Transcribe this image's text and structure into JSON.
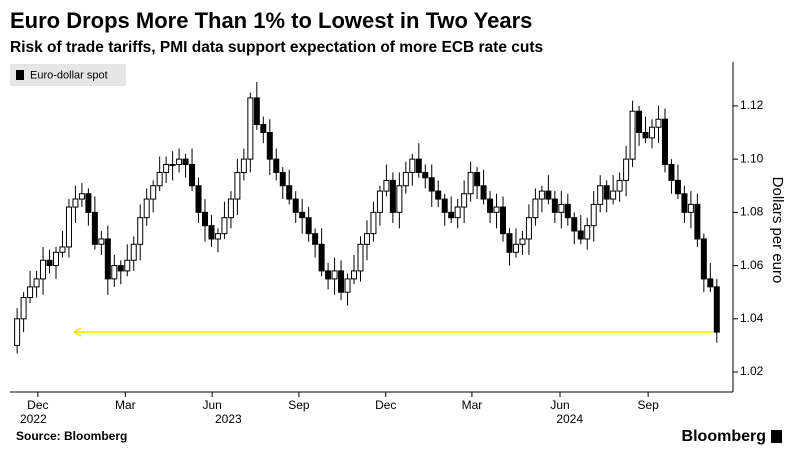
{
  "chart_data": {
    "type": "candlestick",
    "title": "Euro Drops More Than 1% to Lowest in Two Years",
    "subtitle": "Risk of trade tariffs, PMI data support expectation of more ECB rate cuts",
    "y_axis_label": "Dollars per euro",
    "source": "Source: Bloomberg",
    "brand": "Bloomberg",
    "legend": "top-left",
    "series": [
      {
        "name": "Euro-dollar spot",
        "color": "#000000",
        "up_color": "#ffffff",
        "open": [
          1.03,
          1.04,
          1.048,
          1.052,
          1.055,
          1.062,
          1.06,
          1.065,
          1.067,
          1.082,
          1.085,
          1.087,
          1.08,
          1.068,
          1.07,
          1.055,
          1.06,
          1.058,
          1.062,
          1.068,
          1.078,
          1.085,
          1.09,
          1.095,
          1.098,
          1.098,
          1.1,
          1.098,
          1.09,
          1.08,
          1.075,
          1.07,
          1.072,
          1.078,
          1.085,
          1.095,
          1.1,
          1.123,
          1.113,
          1.11,
          1.1,
          1.095,
          1.09,
          1.085,
          1.08,
          1.078,
          1.072,
          1.068,
          1.058,
          1.055,
          1.058,
          1.05,
          1.055,
          1.058,
          1.068,
          1.072,
          1.08,
          1.088,
          1.092,
          1.08,
          1.09,
          1.095,
          1.1,
          1.095,
          1.093,
          1.088,
          1.085,
          1.08,
          1.078,
          1.082,
          1.087,
          1.095,
          1.09,
          1.085,
          1.08,
          1.082,
          1.072,
          1.065,
          1.068,
          1.07,
          1.078,
          1.085,
          1.088,
          1.085,
          1.08,
          1.083,
          1.078,
          1.073,
          1.07,
          1.075,
          1.083,
          1.09,
          1.085,
          1.088,
          1.092,
          1.1,
          1.118,
          1.11,
          1.108,
          1.112,
          1.115,
          1.098,
          1.092,
          1.087,
          1.08,
          1.083,
          1.07,
          1.055,
          1.052
        ],
        "high": [
          1.044,
          1.05,
          1.058,
          1.058,
          1.067,
          1.066,
          1.067,
          1.073,
          1.085,
          1.09,
          1.091,
          1.089,
          1.086,
          1.073,
          1.075,
          1.064,
          1.062,
          1.068,
          1.071,
          1.083,
          1.089,
          1.092,
          1.101,
          1.101,
          1.103,
          1.104,
          1.102,
          1.104,
          1.093,
          1.085,
          1.079,
          1.074,
          1.084,
          1.088,
          1.1,
          1.104,
          1.125,
          1.129,
          1.116,
          1.115,
          1.104,
          1.097,
          1.096,
          1.088,
          1.085,
          1.082,
          1.074,
          1.074,
          1.061,
          1.063,
          1.062,
          1.057,
          1.064,
          1.071,
          1.077,
          1.084,
          1.09,
          1.098,
          1.095,
          1.095,
          1.099,
          1.102,
          1.106,
          1.098,
          1.098,
          1.092,
          1.087,
          1.086,
          1.085,
          1.092,
          1.099,
          1.097,
          1.096,
          1.088,
          1.087,
          1.086,
          1.074,
          1.074,
          1.073,
          1.083,
          1.089,
          1.09,
          1.094,
          1.088,
          1.088,
          1.087,
          1.08,
          1.079,
          1.078,
          1.088,
          1.094,
          1.092,
          1.094,
          1.095,
          1.105,
          1.122,
          1.12,
          1.116,
          1.115,
          1.12,
          1.119,
          1.1,
          1.098,
          1.09,
          1.088,
          1.087,
          1.072,
          1.061,
          1.055
        ],
        "low": [
          1.027,
          1.035,
          1.046,
          1.048,
          1.049,
          1.057,
          1.055,
          1.063,
          1.063,
          1.076,
          1.082,
          1.075,
          1.066,
          1.064,
          1.049,
          1.052,
          1.053,
          1.056,
          1.058,
          1.062,
          1.075,
          1.08,
          1.088,
          1.091,
          1.092,
          1.095,
          1.093,
          1.088,
          1.076,
          1.069,
          1.067,
          1.065,
          1.07,
          1.074,
          1.079,
          1.092,
          1.095,
          1.111,
          1.106,
          1.094,
          1.092,
          1.085,
          1.083,
          1.076,
          1.072,
          1.069,
          1.063,
          1.056,
          1.051,
          1.049,
          1.047,
          1.045,
          1.053,
          1.054,
          1.062,
          1.069,
          1.075,
          1.086,
          1.076,
          1.074,
          1.087,
          1.09,
          1.093,
          1.089,
          1.082,
          1.082,
          1.075,
          1.076,
          1.074,
          1.076,
          1.084,
          1.085,
          1.083,
          1.076,
          1.074,
          1.069,
          1.06,
          1.063,
          1.064,
          1.064,
          1.075,
          1.08,
          1.083,
          1.076,
          1.074,
          1.075,
          1.068,
          1.068,
          1.066,
          1.069,
          1.08,
          1.08,
          1.083,
          1.084,
          1.086,
          1.097,
          1.105,
          1.106,
          1.104,
          1.106,
          1.095,
          1.087,
          1.085,
          1.076,
          1.074,
          1.067,
          1.05,
          1.05,
          1.031
        ],
        "close": [
          1.04,
          1.048,
          1.052,
          1.055,
          1.062,
          1.06,
          1.065,
          1.067,
          1.082,
          1.085,
          1.087,
          1.08,
          1.068,
          1.07,
          1.055,
          1.06,
          1.058,
          1.062,
          1.068,
          1.078,
          1.085,
          1.09,
          1.095,
          1.098,
          1.098,
          1.1,
          1.098,
          1.09,
          1.08,
          1.075,
          1.07,
          1.072,
          1.078,
          1.085,
          1.095,
          1.1,
          1.123,
          1.113,
          1.11,
          1.1,
          1.095,
          1.09,
          1.085,
          1.08,
          1.078,
          1.072,
          1.068,
          1.058,
          1.055,
          1.058,
          1.05,
          1.055,
          1.058,
          1.068,
          1.072,
          1.08,
          1.088,
          1.092,
          1.08,
          1.09,
          1.095,
          1.1,
          1.095,
          1.093,
          1.088,
          1.085,
          1.08,
          1.078,
          1.082,
          1.087,
          1.095,
          1.09,
          1.085,
          1.08,
          1.082,
          1.072,
          1.065,
          1.068,
          1.07,
          1.078,
          1.085,
          1.088,
          1.085,
          1.08,
          1.083,
          1.078,
          1.073,
          1.07,
          1.075,
          1.083,
          1.09,
          1.085,
          1.088,
          1.092,
          1.1,
          1.118,
          1.11,
          1.108,
          1.112,
          1.115,
          1.098,
          1.092,
          1.087,
          1.08,
          1.083,
          1.07,
          1.055,
          1.052,
          1.035
        ]
      }
    ],
    "reference_line": {
      "value": 1.035,
      "color": "#f2e600"
    },
    "xlim": [
      -1.1,
      110.5
    ],
    "xticks": [
      {
        "value": 3.2,
        "label": "Dec"
      },
      {
        "value": 16.7,
        "label": "Mar"
      },
      {
        "value": 30.1,
        "label": "Jun"
      },
      {
        "value": 43.5,
        "label": "Sep"
      },
      {
        "value": 56.9,
        "label": "Dec"
      },
      {
        "value": 70.2,
        "label": "Mar"
      },
      {
        "value": 83.8,
        "label": "Jun"
      },
      {
        "value": 97.4,
        "label": "Sep"
      }
    ],
    "xtick_years": [
      {
        "value": 2.5,
        "label": "2022"
      },
      {
        "value": 32.6,
        "label": "2023"
      },
      {
        "value": 85.3,
        "label": "2024"
      }
    ],
    "ylim": [
      1.0125,
      1.1365
    ],
    "yticks": [
      1.02,
      1.04,
      1.06,
      1.08,
      {
        "value": 1.1,
        "label": "1.10"
      },
      1.12
    ],
    "grid": false
  }
}
